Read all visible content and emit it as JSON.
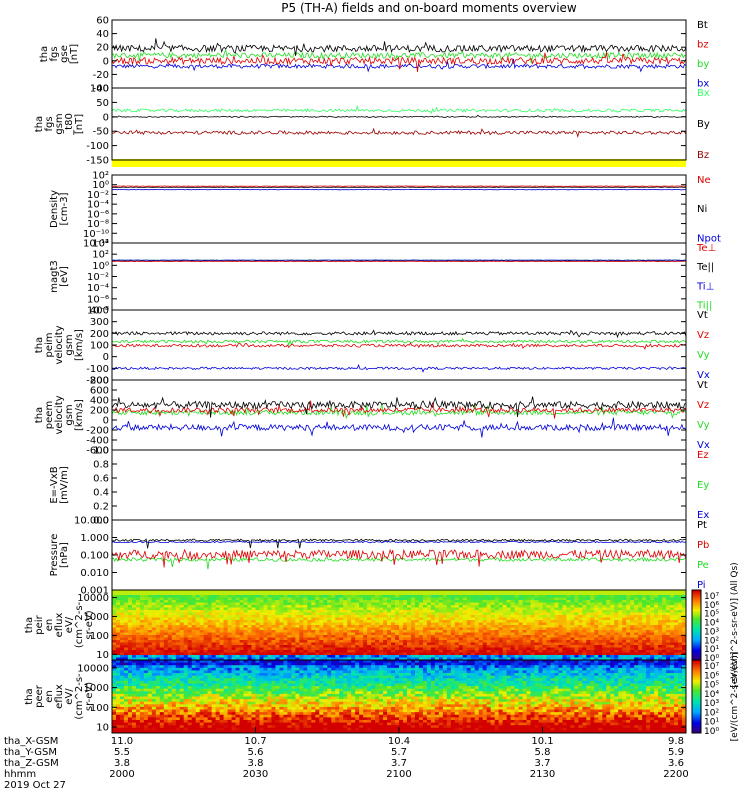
{
  "title": "P5 (TH-A) fields and on-board moments overview",
  "colors": {
    "black": "#000000",
    "red": "#e00000",
    "green": "#22dd22",
    "blue": "#0000dd",
    "darkred": "#990000",
    "yellow": "#ffff00",
    "lightgreen": "#33ff66"
  },
  "panels": [
    {
      "id": "fgs-gse",
      "ylabel": [
        "tha",
        "fgs",
        "gse",
        "[nT]"
      ],
      "ylim": [
        -40,
        60
      ],
      "yticks": [
        "60",
        "40",
        "20",
        "0",
        "-20",
        "-40"
      ],
      "legend": [
        {
          "label": "Bt",
          "color": "#000000"
        },
        {
          "label": "bz",
          "color": "#e00000"
        },
        {
          "label": "by",
          "color": "#22dd22"
        },
        {
          "label": "bx",
          "color": "#0000dd"
        }
      ],
      "series": [
        {
          "name": "bx",
          "color": "#0000dd",
          "mean": -8,
          "noise": 3,
          "spike": 0.02
        },
        {
          "name": "by",
          "color": "#22dd22",
          "mean": 8,
          "noise": 4,
          "spike": 0.02
        },
        {
          "name": "bz",
          "color": "#e00000",
          "mean": 0,
          "noise": 5,
          "spike": 0.04
        },
        {
          "name": "Bt",
          "color": "#000000",
          "mean": 18,
          "noise": 5,
          "spike": 0.05
        }
      ]
    },
    {
      "id": "fgs-gsm",
      "ylabel": [
        "tha",
        "fgs",
        "gsm",
        "_t80",
        "[nT]"
      ],
      "ylim": [
        -150,
        100
      ],
      "yticks": [
        "100",
        "50",
        "0",
        "-50",
        "-100",
        "-150"
      ],
      "legend": [
        {
          "label": "Bx",
          "color": "#33ff66"
        },
        {
          "label": "By",
          "color": "#000000"
        },
        {
          "label": "Bz",
          "color": "#990000"
        }
      ],
      "series": [
        {
          "name": "Bx",
          "color": "#33ff66",
          "mean": 22,
          "noise": 5,
          "spike": 0.02
        },
        {
          "name": "By",
          "color": "#000000",
          "mean": 0,
          "noise": 2,
          "spike": 0.01
        },
        {
          "name": "Bz",
          "color": "#990000",
          "mean": -55,
          "noise": 6,
          "spike": 0.02
        }
      ]
    },
    {
      "id": "density",
      "ylabel": [
        "Density",
        "[cm-3]"
      ],
      "log": true,
      "ylim": [
        1e-12,
        100
      ],
      "yticks": [
        "10²",
        "10⁰",
        "10⁻²",
        "10⁻⁴",
        "10⁻⁶",
        "10⁻⁸",
        "10⁻¹⁰",
        "10⁻¹²"
      ],
      "legend": [
        {
          "label": "Ne",
          "color": "#e00000"
        },
        {
          "label": "Ni",
          "color": "#000000"
        },
        {
          "label": "Npot",
          "color": "#0000dd"
        }
      ],
      "series": [
        {
          "name": "Npot",
          "color": "#0000dd",
          "mean": 0.1,
          "noise": 0.05,
          "spike": 0
        },
        {
          "name": "Ni",
          "color": "#000000",
          "mean": 0.3,
          "noise": 0.05,
          "spike": 0
        },
        {
          "name": "Ne",
          "color": "#e00000",
          "mean": 0.5,
          "noise": 0.05,
          "spike": 0
        }
      ]
    },
    {
      "id": "temperature",
      "ylabel": [
        "magt3",
        "[eV]"
      ],
      "log": true,
      "ylim": [
        1e-10,
        10000
      ],
      "yticks": [
        "10⁴",
        "10²",
        "10⁰",
        "10⁻²",
        "10⁻⁴",
        "10⁻⁶",
        "10⁻⁸"
      ],
      "legend": [
        {
          "label": "Te⊥",
          "color": "#e00000"
        },
        {
          "label": "Te||",
          "color": "#000000"
        },
        {
          "label": "Ti⊥",
          "color": "#0000dd"
        },
        {
          "label": "Ti||",
          "color": "#22dd22"
        }
      ],
      "series": [
        {
          "name": "Ti||",
          "color": "#22dd22",
          "mean": 2.5,
          "noise": 0.05,
          "spike": 0
        },
        {
          "name": "Ti⊥",
          "color": "#0000dd",
          "mean": 2.6,
          "noise": 0.05,
          "spike": 0
        },
        {
          "name": "Te||",
          "color": "#000000",
          "mean": 1.6,
          "noise": 0.05,
          "spike": 0
        },
        {
          "name": "Te⊥",
          "color": "#e00000",
          "mean": 1.5,
          "noise": 0.05,
          "spike": 0
        }
      ]
    },
    {
      "id": "peim-velocity",
      "ylabel": [
        "tha",
        "peim",
        "velocity",
        "gsm",
        "[km/s]"
      ],
      "ylim": [
        -200,
        400
      ],
      "yticks": [
        "400",
        "300",
        "200",
        "100",
        "0",
        "-100",
        "-200"
      ],
      "legend": [
        {
          "label": "Vt",
          "color": "#000000"
        },
        {
          "label": "Vz",
          "color": "#e00000"
        },
        {
          "label": "Vy",
          "color": "#22dd22"
        },
        {
          "label": "Vx",
          "color": "#0000dd"
        }
      ],
      "series": [
        {
          "name": "Vx",
          "color": "#0000dd",
          "mean": -100,
          "noise": 10,
          "spike": 0.02
        },
        {
          "name": "Vy",
          "color": "#22dd22",
          "mean": 130,
          "noise": 12,
          "spike": 0.02
        },
        {
          "name": "Vz",
          "color": "#e00000",
          "mean": 95,
          "noise": 12,
          "spike": 0.03
        },
        {
          "name": "Vt",
          "color": "#000000",
          "mean": 200,
          "noise": 14,
          "spike": 0.03
        }
      ]
    },
    {
      "id": "peem-velocity",
      "ylabel": [
        "tha",
        "peem",
        "velocity",
        "gsm",
        "[km/s]"
      ],
      "ylim": [
        -600,
        800
      ],
      "yticks": [
        "800",
        "600",
        "400",
        "200",
        "0",
        "-200",
        "-400",
        "-600"
      ],
      "legend": [
        {
          "label": "Vt",
          "color": "#000000"
        },
        {
          "label": "Vz",
          "color": "#e00000"
        },
        {
          "label": "Vy",
          "color": "#22dd22"
        },
        {
          "label": "Vx",
          "color": "#0000dd"
        }
      ],
      "series": [
        {
          "name": "Vx",
          "color": "#0000dd",
          "mean": -150,
          "noise": 60,
          "spike": 0.05
        },
        {
          "name": "Vy",
          "color": "#22dd22",
          "mean": 150,
          "noise": 50,
          "spike": 0.04
        },
        {
          "name": "Vz",
          "color": "#e00000",
          "mean": 200,
          "noise": 50,
          "spike": 0.04
        },
        {
          "name": "Vt",
          "color": "#000000",
          "mean": 300,
          "noise": 70,
          "spike": 0.06
        }
      ]
    },
    {
      "id": "efield",
      "ylabel": [
        "E=-VxB",
        "[mV/m]"
      ],
      "ylim": [
        0,
        1
      ],
      "yticks": [
        "1.0",
        "0.8",
        "0.6",
        "0.4",
        "0.2",
        "0.0"
      ],
      "legend": [
        {
          "label": "Ez",
          "color": "#e00000"
        },
        {
          "label": "Ey",
          "color": "#22dd22"
        },
        {
          "label": "Ex",
          "color": "#0000dd"
        }
      ],
      "series": []
    },
    {
      "id": "pressure",
      "ylabel": [
        "Pressure",
        "[nPa]"
      ],
      "log": true,
      "ylim": [
        0.001,
        10
      ],
      "yticks": [
        "10.000",
        "1.000",
        "0.100",
        "0.010",
        "0.001"
      ],
      "legend": [
        {
          "label": "Pt",
          "color": "#000000"
        },
        {
          "label": "Pb",
          "color": "#e00000"
        },
        {
          "label": "Pe",
          "color": "#22dd22"
        },
        {
          "label": "Pi",
          "color": "#0000dd"
        }
      ],
      "series": [
        {
          "name": "Pe",
          "color": "#22dd22",
          "mean": 0.055,
          "noise": 0.1,
          "spike": 0.01
        },
        {
          "name": "Pb",
          "color": "#e00000",
          "mean": 0.11,
          "noise": 0.25,
          "spike": 0.05
        },
        {
          "name": "Pi",
          "color": "#0000dd",
          "mean": 0.55,
          "noise": 0.04,
          "spike": 0
        },
        {
          "name": "Pt",
          "color": "#000000",
          "mean": 0.7,
          "noise": 0.06,
          "spike": 0.01
        }
      ]
    },
    {
      "id": "peir-spec",
      "ylabel": [
        "tha",
        "peir",
        "en",
        "eflux",
        "eV/",
        "(cm^2-s-",
        "sr-eV)"
      ],
      "spectrogram": true,
      "log": true,
      "ylim": [
        5,
        25000
      ],
      "yticks": [
        "10000",
        "1000",
        "100",
        "10"
      ]
    },
    {
      "id": "peer-spec",
      "ylabel": [
        "tha",
        "peer",
        "en",
        "eflux",
        "eV/",
        "(cm^2-s-",
        "sr-eV)"
      ],
      "spectrogram": true,
      "log": true,
      "ylim": [
        5,
        25000
      ],
      "yticks": [
        "10000",
        "1000",
        "100",
        "10"
      ]
    }
  ],
  "colorbars": [
    {
      "ticks": [
        "10⁷",
        "10⁶",
        "10⁵",
        "10⁴",
        "10³",
        "10²",
        "10¹",
        "10⁰"
      ],
      "label": "[eV/(cm^2-s-sr-eV)] (All Qs)"
    },
    {
      "ticks": [
        "10⁷",
        "10⁶",
        "10⁵",
        "10⁴",
        "10³",
        "10²",
        "10¹",
        "10⁰"
      ],
      "label": "[eV/(cm^2-s-sr-eV)]"
    }
  ],
  "xaxis": {
    "row_labels": [
      "tha_X-GSM",
      "tha_Y-GSM",
      "tha_Z-GSM",
      "hhmm",
      "2019 Oct 27"
    ],
    "ticks": [
      {
        "values": [
          "11.0",
          "5.5",
          "3.8",
          "2000"
        ]
      },
      {
        "values": [
          "10.7",
          "5.6",
          "3.8",
          "2030"
        ]
      },
      {
        "values": [
          "10.4",
          "5.7",
          "3.7",
          "2100"
        ]
      },
      {
        "values": [
          "10.1",
          "5.8",
          "3.7",
          "2130"
        ]
      },
      {
        "values": [
          "9.8",
          "5.9",
          "3.6",
          "2200"
        ]
      }
    ]
  }
}
